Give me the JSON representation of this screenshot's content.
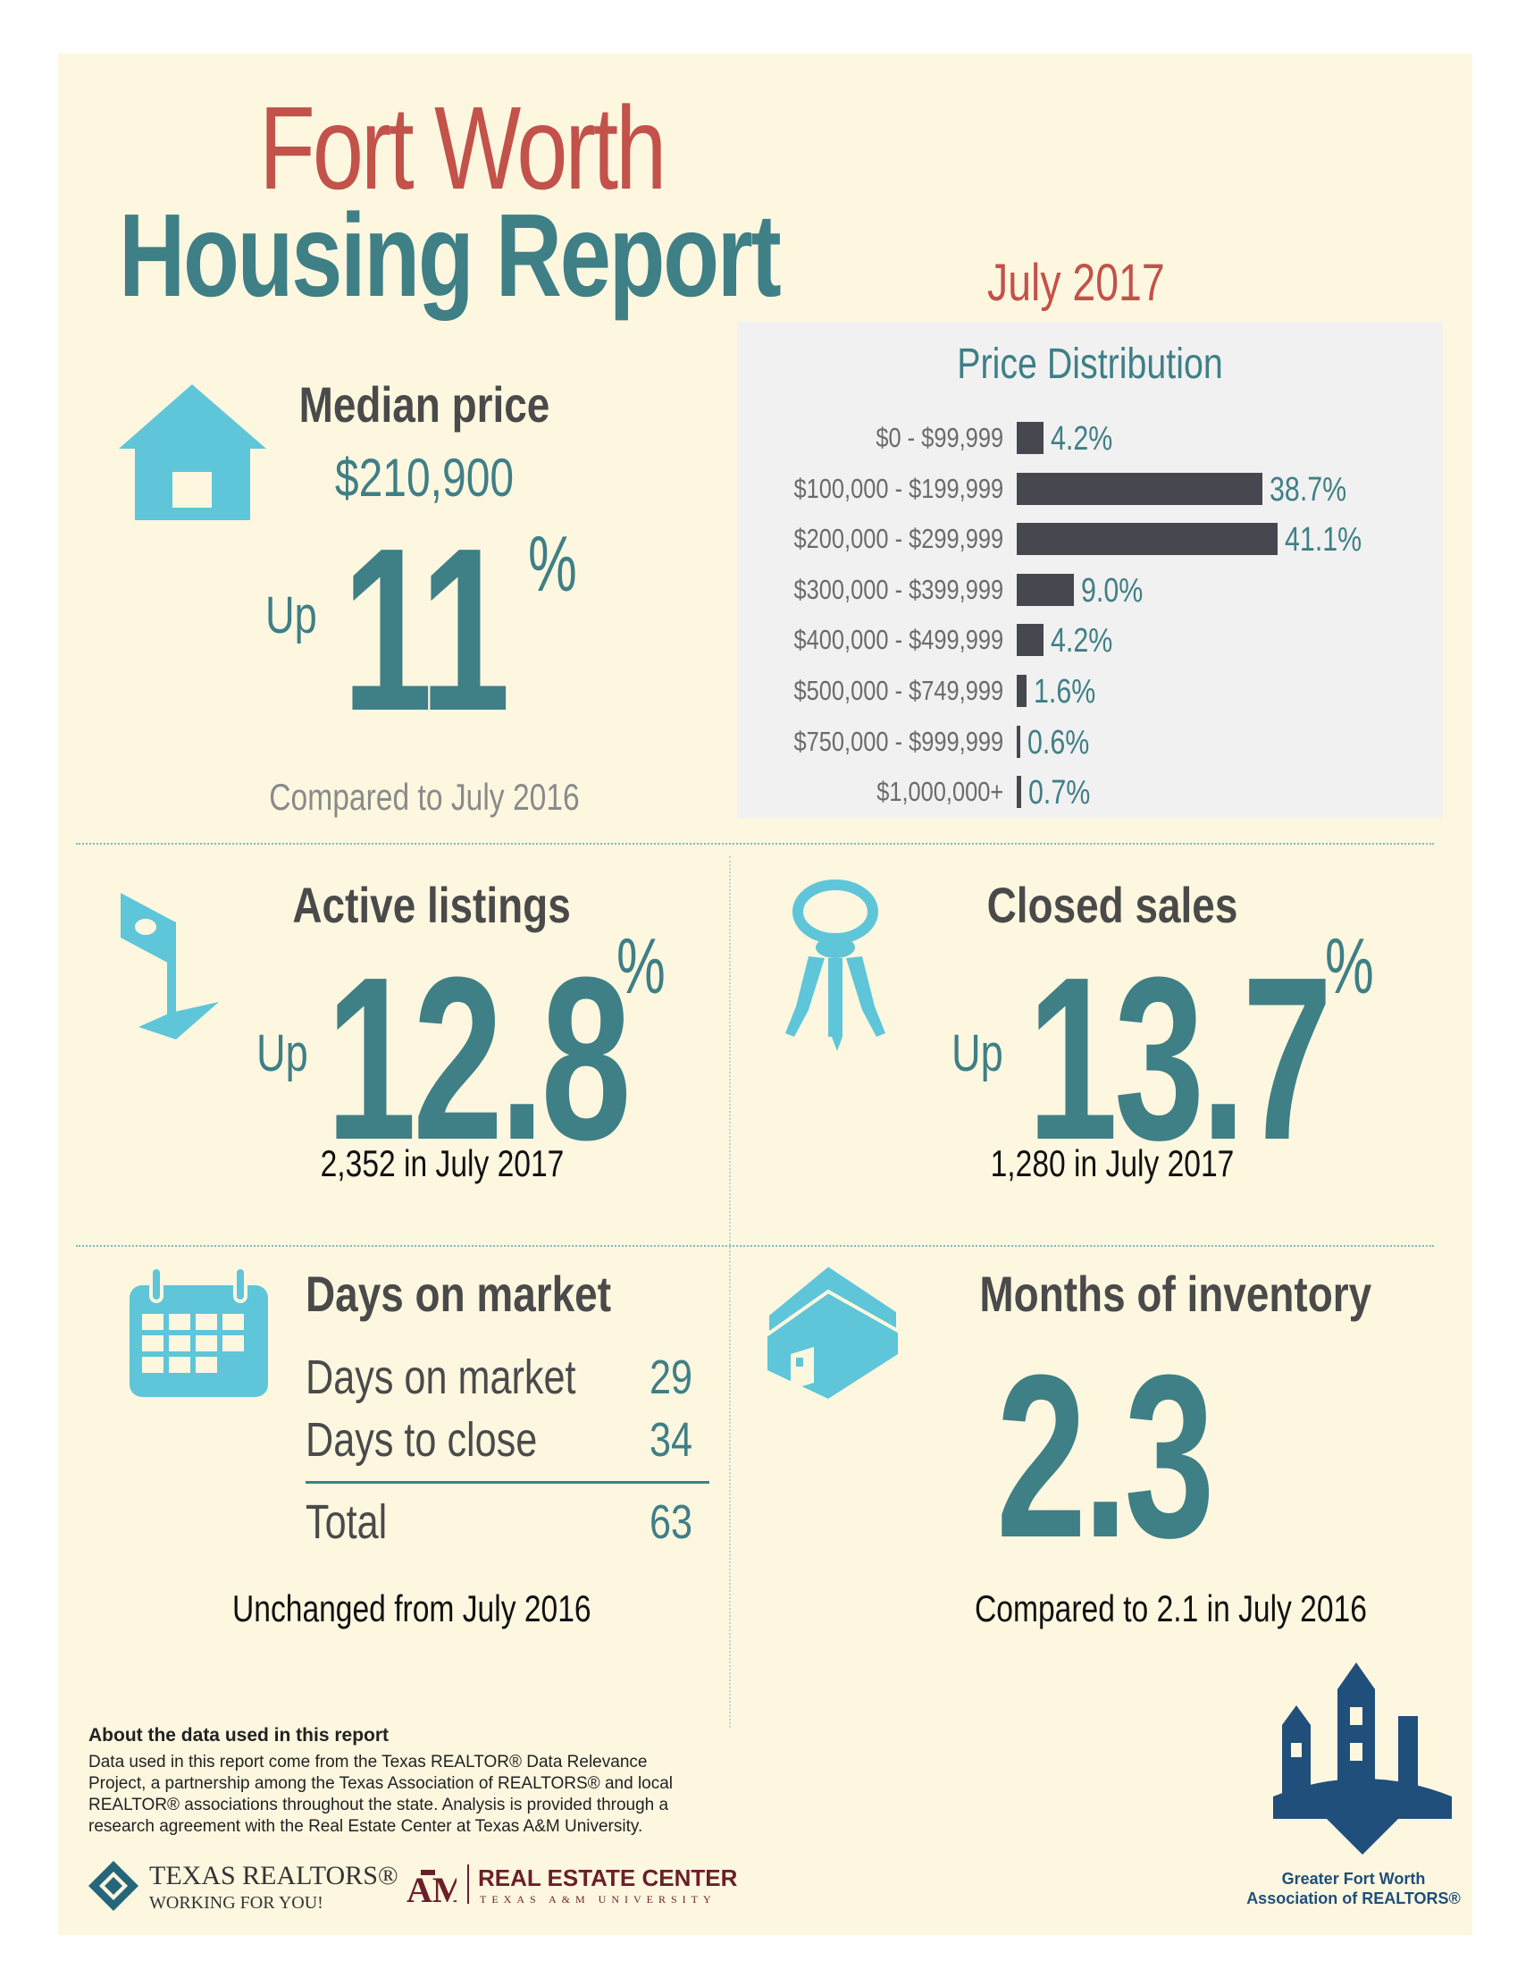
{
  "header": {
    "city": "Fort Worth",
    "title": "Housing Report",
    "month": "July 2017"
  },
  "median_price": {
    "heading": "Median price",
    "value": "$210,900",
    "direction": "Up",
    "change": "11",
    "percent_sign": "%",
    "comparison": "Compared to July 2016"
  },
  "price_distribution": {
    "title": "Price Distribution"
  },
  "chart_data": {
    "type": "bar",
    "title": "Price Distribution",
    "categories": [
      "$0 - $99,999",
      "$100,000 - $199,999",
      "$200,000 - $299,999",
      "$300,000 - $399,999",
      "$400,000 - $499,999",
      "$500,000 - $749,999",
      "$750,000 - $999,999",
      "$1,000,000+"
    ],
    "values": [
      4.2,
      38.7,
      41.1,
      9.0,
      4.2,
      1.6,
      0.6,
      0.7
    ],
    "value_labels": [
      "4.2%",
      "38.7%",
      "41.1%",
      "9.0%",
      "4.2%",
      "1.6%",
      "0.6%",
      "0.7%"
    ],
    "orientation": "horizontal",
    "unit": "%",
    "bar_color": "#47474f",
    "label_color": "#3f7f86"
  },
  "active_listings": {
    "heading": "Active listings",
    "direction": "Up",
    "change": "12.8",
    "percent_sign": "%",
    "detail": "2,352 in July 2017"
  },
  "closed_sales": {
    "heading": "Closed sales",
    "direction": "Up",
    "change": "13.7",
    "percent_sign": "%",
    "detail": "1,280 in July 2017"
  },
  "days_on_market": {
    "heading": "Days on market",
    "rows": [
      {
        "label": "Days on market",
        "value": "29"
      },
      {
        "label": "Days to close",
        "value": "34"
      }
    ],
    "total_label": "Total",
    "total_value": "63",
    "comparison": "Unchanged from July 2016"
  },
  "months_inventory": {
    "heading": "Months of inventory",
    "value": "2.3",
    "comparison": "Compared to 2.1 in July 2016"
  },
  "footer": {
    "about_title": "About the data used in this report",
    "about_text": "Data used in this report come from the Texas REALTOR® Data Relevance Project, a partnership among the Texas Association of REALTORS® and local REALTOR® associations throughout the state. Analysis is provided through a research agreement with the Real Estate Center at Texas A&M University.",
    "texas_realtors": "TEXAS REALTORS®",
    "texas_realtors_tagline": "WORKING FOR YOU!",
    "rec_name": "REAL ESTATE CENTER",
    "rec_sub": "TEXAS A&M UNIVERSITY",
    "gfw_line1": "Greater Fort Worth",
    "gfw_line2": "Association of REALTORS®"
  },
  "colors": {
    "background": "#fdf7e0",
    "teal": "#3f7f86",
    "red": "#c2524a",
    "icon": "#5ec6d8",
    "dark": "#4a4a4a"
  },
  "icons": [
    "house-icon",
    "for-sale-sign-icon",
    "keys-icon",
    "calendar-icon",
    "home-inventory-icon",
    "texas-realtors-logo",
    "texas-am-logo",
    "gfw-association-logo"
  ]
}
